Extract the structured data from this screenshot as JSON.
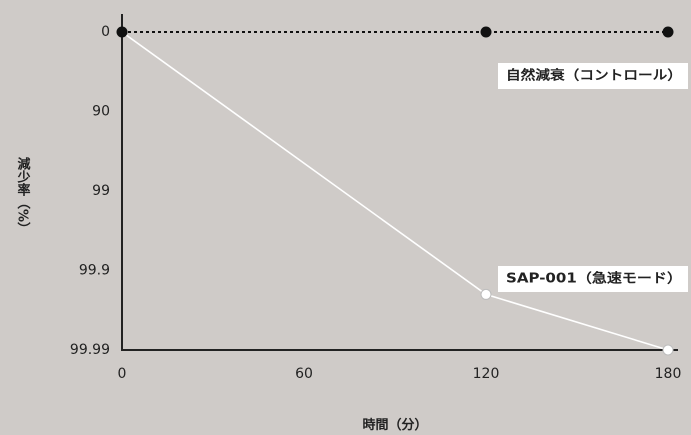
{
  "colors": {
    "background": "#cfcbc8",
    "axis": "#222222",
    "control": "#111111",
    "sap": "#ffffff",
    "label_box": "#ffffff"
  },
  "chart_data": {
    "type": "line",
    "xlabel": "時間（分）",
    "ylabel": "減少率（%）",
    "x_ticks": [
      "0",
      "60",
      "120",
      "180"
    ],
    "y_ticks": [
      "0",
      "90",
      "99",
      "99.9",
      "99.99"
    ],
    "xlim": [
      0,
      180
    ],
    "y_scale": "log-reduction",
    "grid": false,
    "series": [
      {
        "name": "自然減衰（コントロール）",
        "style": "dotted",
        "marker": "filled-black-circle",
        "color": "#111111",
        "x": [
          0,
          120,
          180
        ],
        "y": [
          0,
          0,
          0
        ]
      },
      {
        "name": "SAP-001（急速モード）",
        "style": "solid",
        "marker": "open-white-circle",
        "color": "#ffffff",
        "x": [
          0,
          120,
          180
        ],
        "y": [
          0,
          99.95,
          99.99
        ]
      }
    ]
  }
}
